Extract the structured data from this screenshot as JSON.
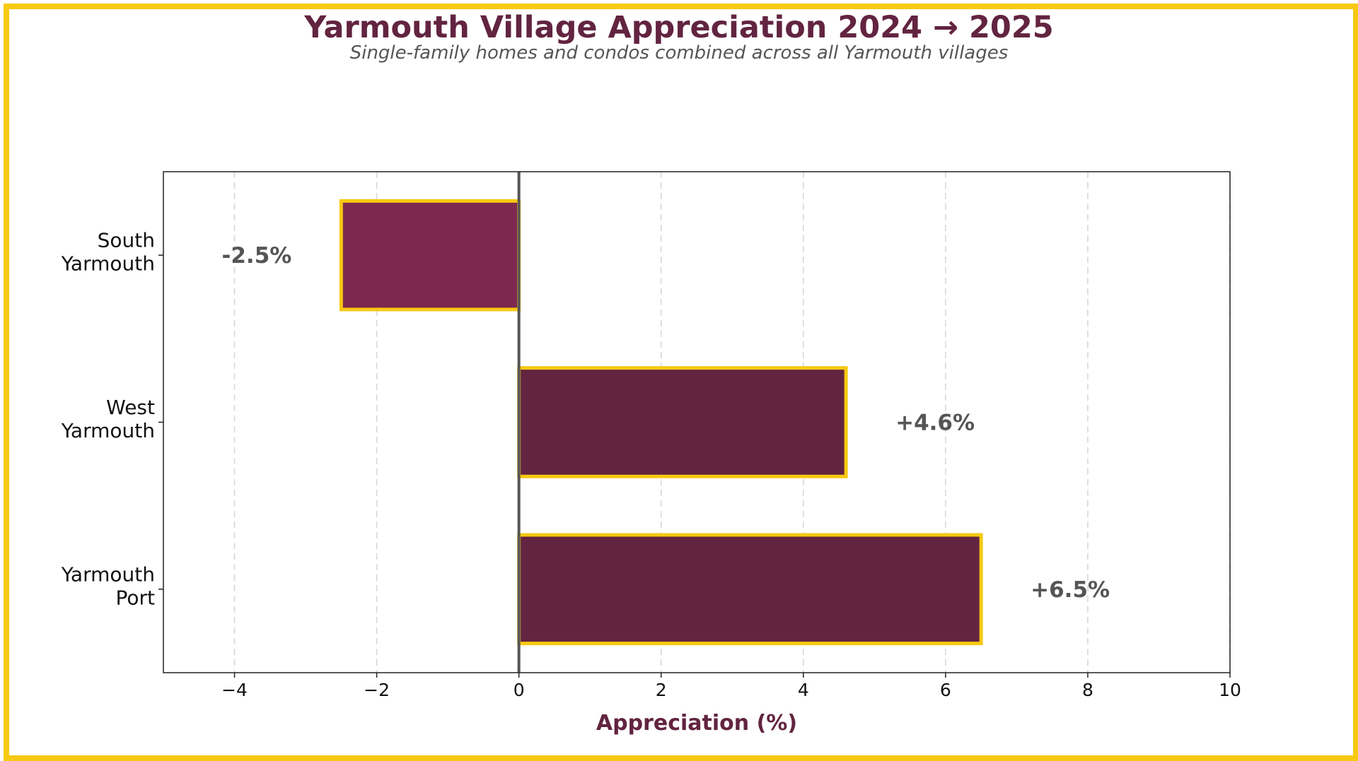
{
  "colors": {
    "frame": "#f7c912",
    "title": "#622440",
    "bar_positive": "#622440",
    "bar_negative": "#7d284f",
    "bar_edge": "#f7c912",
    "label_text": "#555555",
    "zero_line": "#555555"
  },
  "chart_data": {
    "type": "bar",
    "orientation": "horizontal",
    "title": "Yarmouth Village Appreciation 2024 → 2025",
    "subtitle": "Single-family homes and condos combined across all Yarmouth villages",
    "xlabel": "Appreciation (%)",
    "ylabel": "",
    "xlim": [
      -5,
      10
    ],
    "xticks": [
      -4,
      -2,
      0,
      2,
      4,
      6,
      8,
      10
    ],
    "xtick_labels": [
      "−4",
      "−2",
      "0",
      "2",
      "4",
      "6",
      "8",
      "10"
    ],
    "grid": "x dashed",
    "categories": [
      [
        "South",
        "Yarmouth"
      ],
      [
        "West",
        "Yarmouth"
      ],
      [
        "Yarmouth",
        "Port"
      ]
    ],
    "values": [
      -2.5,
      4.6,
      6.5
    ],
    "value_labels": [
      "-2.5%",
      "+4.6%",
      "+6.5%"
    ]
  }
}
